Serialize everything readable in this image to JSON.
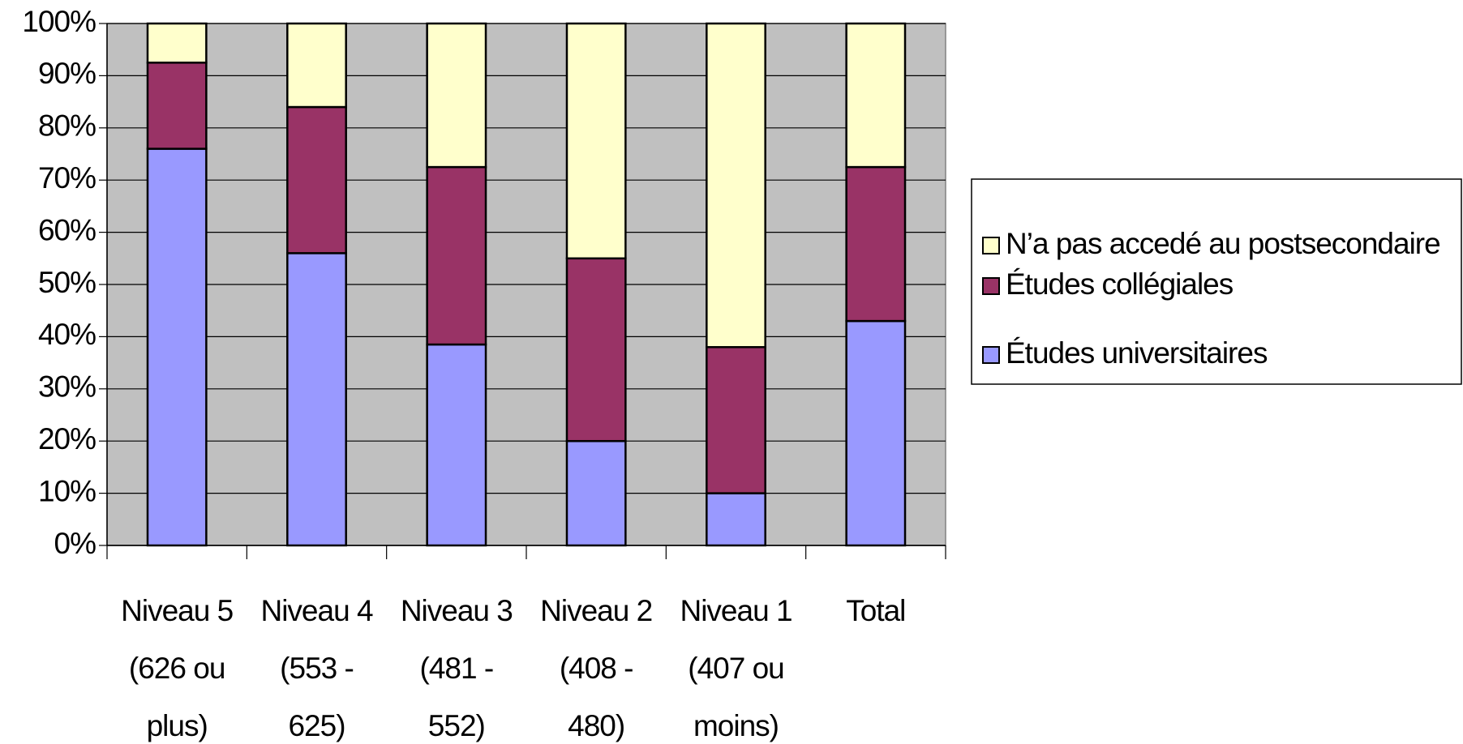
{
  "chart_data": {
    "type": "stacked_bar",
    "categories": [
      [
        "Niveau 5",
        "(626 ou",
        "plus)"
      ],
      [
        "Niveau 4",
        "(553 -",
        "625)"
      ],
      [
        "Niveau 3",
        "(481 -",
        "552)"
      ],
      [
        "Niveau 2",
        "(408 -",
        "480)"
      ],
      [
        "Niveau 1",
        "(407 ou",
        "moins)"
      ],
      [
        "Total"
      ]
    ],
    "series": [
      {
        "name": "Études universitaires",
        "color": "#9999ff",
        "values": [
          76,
          56,
          38.5,
          20,
          10,
          43
        ]
      },
      {
        "name": "Études collégiales",
        "color": "#993366",
        "values": [
          16.5,
          28,
          34,
          35,
          28,
          29.5
        ]
      },
      {
        "name": "N’a pas accedé au postsecondaire",
        "color": "#ffffcc",
        "values": [
          7.5,
          16,
          27.5,
          45,
          62,
          27.5
        ]
      }
    ],
    "ylim": [
      0,
      100
    ],
    "yticks": [
      {
        "value": 0,
        "label": "0%"
      },
      {
        "value": 10,
        "label": "10%"
      },
      {
        "value": 20,
        "label": "20%"
      },
      {
        "value": 30,
        "label": "30%"
      },
      {
        "value": 40,
        "label": "40%"
      },
      {
        "value": 50,
        "label": "50%"
      },
      {
        "value": 60,
        "label": "60%"
      },
      {
        "value": 70,
        "label": "70%"
      },
      {
        "value": 80,
        "label": "80%"
      },
      {
        "value": 90,
        "label": "90%"
      },
      {
        "value": 100,
        "label": "100%"
      }
    ],
    "grid": true,
    "plot_background": "#c0c0c0",
    "legend": "right"
  }
}
